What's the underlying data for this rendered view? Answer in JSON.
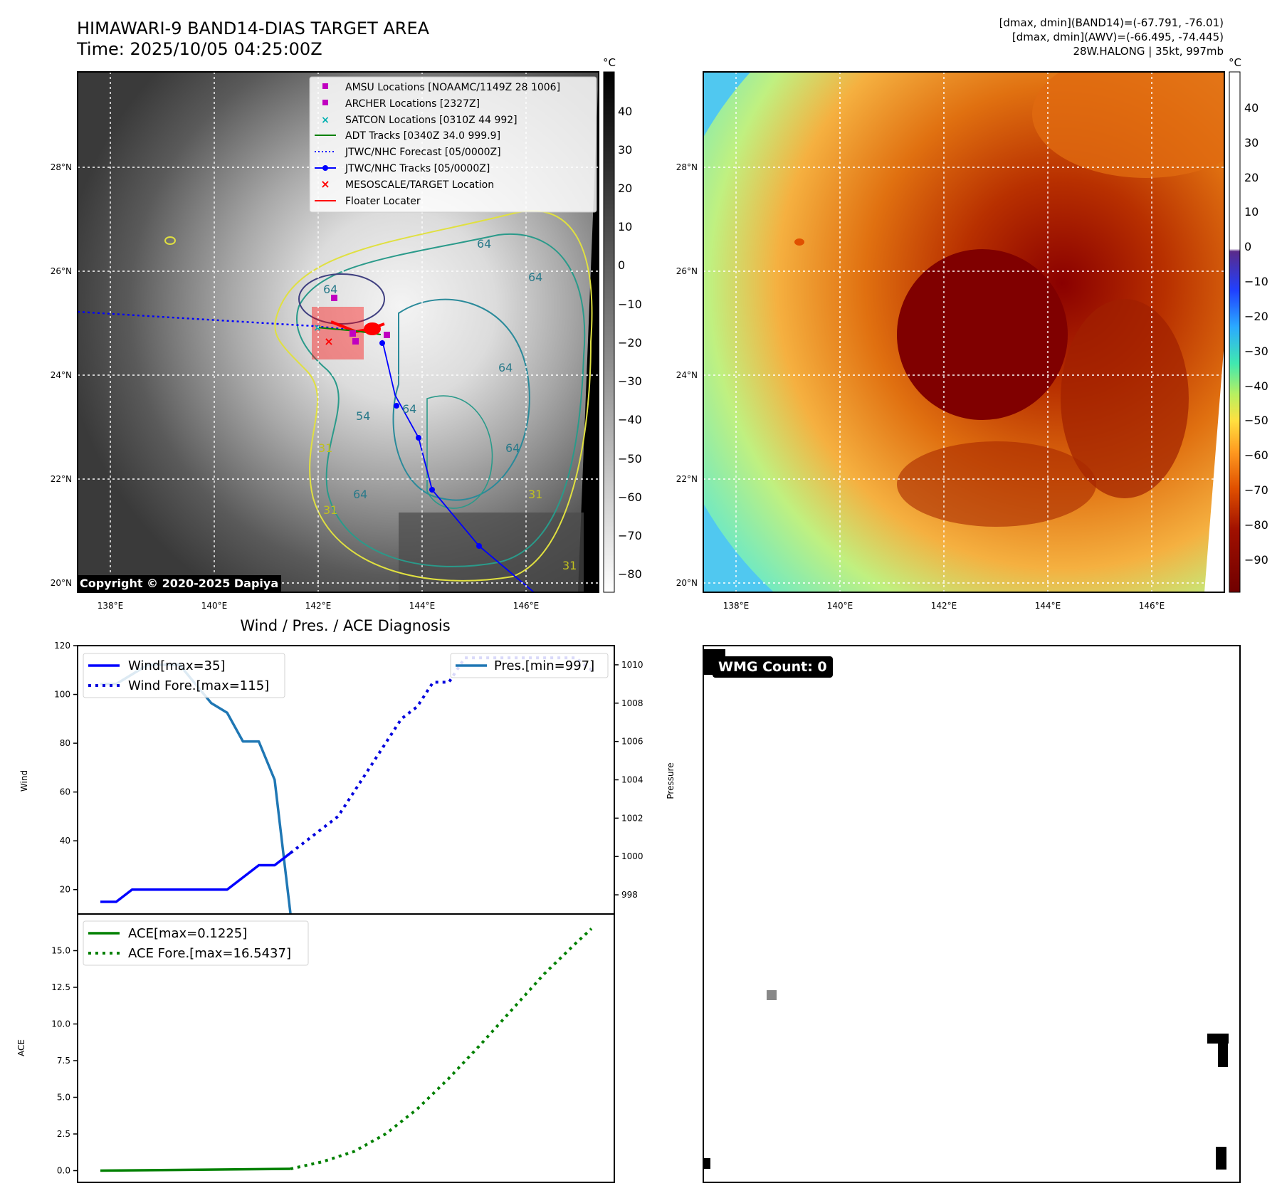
{
  "header": {
    "title_line1": "HIMAWARI-9 BAND14-DIAS TARGET AREA",
    "title_line2": "Time: 2025/10/05 04:25:00Z",
    "stats_line1": "[dmax, dmin](BAND14)=(-67.791, -76.01)",
    "stats_line2": "[dmax, dmin](AWV)=(-66.495, -74.445)",
    "stats_line3": "28W.HALONG | 35kt, 997mb"
  },
  "map": {
    "lon_ticks": [
      "138°E",
      "140°E",
      "142°E",
      "144°E",
      "146°E"
    ],
    "lat_ticks": [
      "28°N",
      "26°N",
      "24°N",
      "22°N",
      "20°N"
    ],
    "unit": "°C",
    "gray_colorbar_ticks": [
      "40",
      "30",
      "20",
      "10",
      "0",
      "−10",
      "−20",
      "−30",
      "−40",
      "−50",
      "−60",
      "−70",
      "−80"
    ],
    "color_colorbar_ticks": [
      "40",
      "30",
      "20",
      "10",
      "0",
      "−10",
      "−20",
      "−30",
      "−40",
      "−50",
      "−60",
      "−70",
      "−80",
      "−90"
    ],
    "copyright": "Copyright © 2020-2025 Dapiya",
    "contour_labels": [
      "64",
      "64",
      "64",
      "54",
      "64",
      "31",
      "64",
      "64",
      "31",
      "31",
      "64",
      "31"
    ],
    "legend": [
      {
        "label": "AMSU Locations [NOAAMC/1149Z 28 1006]",
        "marker": "square",
        "color": "#c000c0"
      },
      {
        "label": "ARCHER Locations [2327Z]",
        "marker": "square",
        "color": "#c000c0"
      },
      {
        "label": "SATCON Locations [0310Z 44 992]",
        "marker": "x",
        "color": "#00b0b0"
      },
      {
        "label": "ADT Tracks [0340Z 34.0 999.9]",
        "marker": "line",
        "color": "#008000"
      },
      {
        "label": "JTWC/NHC Forecast [05/0000Z]",
        "marker": "dotted",
        "color": "#0000ff"
      },
      {
        "label": "JTWC/NHC Tracks [05/0000Z]",
        "marker": "line-dot",
        "color": "#0000ff"
      },
      {
        "label": "MESOSCALE/TARGET Location",
        "marker": "x",
        "color": "#ff0000"
      },
      {
        "label": "Floater Locater",
        "marker": "line",
        "color": "#ff0000"
      }
    ]
  },
  "diagnosis": {
    "title": "Wind / Pres. / ACE Diagnosis",
    "wind_ylabel": "Wind",
    "pres_ylabel": "Pressure",
    "ace_ylabel": "ACE",
    "wind_ticks": [
      "120",
      "100",
      "80",
      "60",
      "40",
      "20"
    ],
    "pres_ticks": [
      "1010",
      "1008",
      "1006",
      "1004",
      "1002",
      "1000",
      "998"
    ],
    "ace_ticks": [
      "15.0",
      "12.5",
      "10.0",
      "7.5",
      "5.0",
      "2.5",
      "0.0"
    ],
    "legend_wind": "Wind[max=35]",
    "legend_wind_fore": "Wind Fore.[max=115]",
    "legend_pres": "Pres.[min=997]",
    "legend_ace": "ACE[max=0.1225]",
    "legend_ace_fore": "ACE Fore.[max=16.5437]"
  },
  "wmg": {
    "label": "WMG Count: 0"
  },
  "chart_data": [
    {
      "type": "line",
      "series": [
        {
          "name": "Wind[max=35]",
          "x": [
            0,
            1,
            2,
            3,
            4,
            5,
            6,
            7,
            8,
            9,
            10,
            11,
            12
          ],
          "values": [
            15,
            15,
            20,
            20,
            20,
            20,
            20,
            20,
            20,
            25,
            30,
            30,
            35
          ],
          "color": "#0000ff",
          "style": "solid"
        },
        {
          "name": "Wind Fore.[max=115]",
          "x": [
            12,
            13,
            14,
            15,
            16,
            17,
            18,
            19,
            20,
            21,
            22,
            23,
            24,
            25,
            26,
            27,
            28,
            29,
            30,
            31
          ],
          "values": [
            35,
            40,
            45,
            50,
            60,
            70,
            80,
            90,
            95,
            105,
            105,
            115,
            115,
            115,
            115,
            115,
            115,
            115,
            115,
            110
          ],
          "color": "#0000dd",
          "style": "dotted"
        }
      ],
      "ylim": [
        10,
        120
      ]
    },
    {
      "type": "line",
      "series": [
        {
          "name": "Pres.[min=997]",
          "x": [
            0,
            1,
            2,
            3,
            4,
            5,
            6,
            7,
            8,
            9,
            10,
            11,
            12
          ],
          "values": [
            1009,
            1009,
            1009.5,
            1010,
            1010,
            1010,
            1009,
            1008,
            1007.5,
            1006,
            1006,
            1004,
            997
          ],
          "color": "#1f77b4",
          "style": "solid"
        }
      ],
      "ylim": [
        997,
        1011
      ]
    },
    {
      "type": "line",
      "series": [
        {
          "name": "ACE[max=0.1225]",
          "x": [
            0,
            12
          ],
          "values": [
            0,
            0.12
          ],
          "color": "#008000",
          "style": "solid"
        },
        {
          "name": "ACE Fore.[max=16.5437]",
          "x": [
            12,
            14,
            16,
            18,
            20,
            22,
            24,
            26,
            28,
            30,
            31
          ],
          "values": [
            0.12,
            0.6,
            1.3,
            2.5,
            4.2,
            6.3,
            8.6,
            11.0,
            13.4,
            15.5,
            16.5
          ],
          "color": "#008000",
          "style": "dotted"
        }
      ],
      "ylim": [
        -0.8,
        17.5
      ]
    }
  ]
}
